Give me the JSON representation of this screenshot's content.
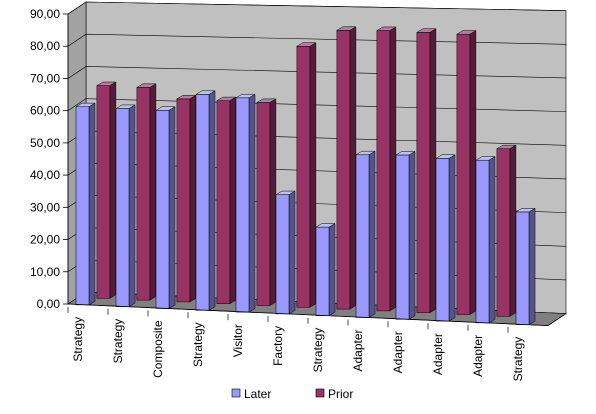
{
  "chart_data": {
    "type": "bar",
    "style": "3d-clustered-column",
    "categories": [
      "Strategy",
      "Strategy",
      "Composite",
      "Strategy",
      "Visitor",
      "Factory",
      "Strategy",
      "Adapter",
      "Adapter",
      "Adapter",
      "Adapter",
      "Strategy"
    ],
    "series": [
      {
        "name": "Later",
        "color": "#9999ff",
        "values": [
          61.5,
          61.5,
          61.5,
          67.0,
          66.5,
          37.0,
          27.5,
          50.5,
          51.0,
          50.5,
          50.5,
          35.0
        ]
      },
      {
        "name": "Prior",
        "color": "#993366",
        "values": [
          66.0,
          66.0,
          63.0,
          63.0,
          63.0,
          81.0,
          86.5,
          87.0,
          87.0,
          87.0,
          52.0,
          0
        ]
      }
    ],
    "yticks": [
      "0,00",
      "10,00",
      "20,00",
      "30,00",
      "40,00",
      "50,00",
      "60,00",
      "70,00",
      "80,00",
      "90,00"
    ],
    "ylim": [
      0,
      90
    ],
    "grid": true,
    "legend": "bottom",
    "wall_color": "#c0c0c0",
    "floor_color": "#808080"
  }
}
